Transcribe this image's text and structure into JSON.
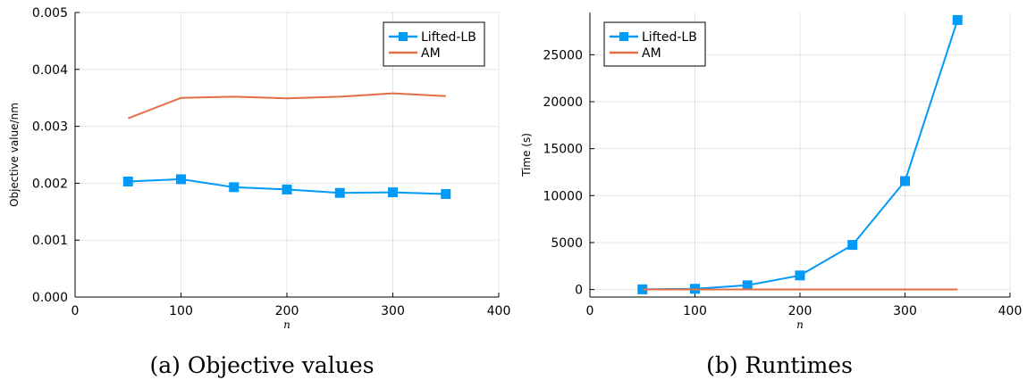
{
  "chart_data": [
    {
      "type": "line",
      "caption": "(a) Objective values",
      "xlabel": "n",
      "ylabel": "Objective value/nm",
      "xlim": [
        0,
        400
      ],
      "ylim": [
        0,
        0.005
      ],
      "xticks": [
        0,
        100,
        200,
        300,
        400
      ],
      "xtick_labels": [
        "0",
        "100",
        "200",
        "300",
        "400"
      ],
      "yticks": [
        0,
        0.001,
        0.002,
        0.003,
        0.004,
        0.005
      ],
      "ytick_labels": [
        "0.000",
        "0.001",
        "0.002",
        "0.003",
        "0.004",
        "0.005"
      ],
      "grid": true,
      "legend": "top-right",
      "series": [
        {
          "name": "Lifted-LB",
          "color": "#009af9",
          "marker": "square",
          "x": [
            50,
            100,
            150,
            200,
            250,
            300,
            350
          ],
          "y": [
            0.00203,
            0.00207,
            0.00193,
            0.00189,
            0.00183,
            0.00184,
            0.00181
          ]
        },
        {
          "name": "AM",
          "color": "#e26f46",
          "marker": "none",
          "x": [
            50,
            100,
            150,
            200,
            250,
            300,
            350
          ],
          "y": [
            0.00314,
            0.0035,
            0.00352,
            0.00349,
            0.00352,
            0.00358,
            0.00353
          ]
        }
      ]
    },
    {
      "type": "line",
      "caption": "(b) Runtimes",
      "xlabel": "n",
      "ylabel": "Time (s)",
      "xlim": [
        0,
        400
      ],
      "ylim": [
        -800,
        29500
      ],
      "xticks": [
        0,
        100,
        200,
        300,
        400
      ],
      "xtick_labels": [
        "0",
        "100",
        "200",
        "300",
        "400"
      ],
      "yticks": [
        0,
        5000,
        10000,
        15000,
        20000,
        25000
      ],
      "ytick_labels": [
        "0",
        "5000",
        "10000",
        "15000",
        "20000",
        "25000"
      ],
      "grid": true,
      "legend": "top-left",
      "series": [
        {
          "name": "Lifted-LB",
          "color": "#009af9",
          "marker": "square",
          "x": [
            50,
            100,
            150,
            200,
            250,
            300,
            350
          ],
          "y": [
            20,
            80,
            450,
            1500,
            4750,
            11550,
            28700
          ]
        },
        {
          "name": "AM",
          "color": "#e26f46",
          "marker": "none",
          "x": [
            50,
            100,
            150,
            200,
            250,
            300,
            350
          ],
          "y": [
            5,
            5,
            5,
            5,
            5,
            5,
            5
          ]
        }
      ]
    }
  ]
}
